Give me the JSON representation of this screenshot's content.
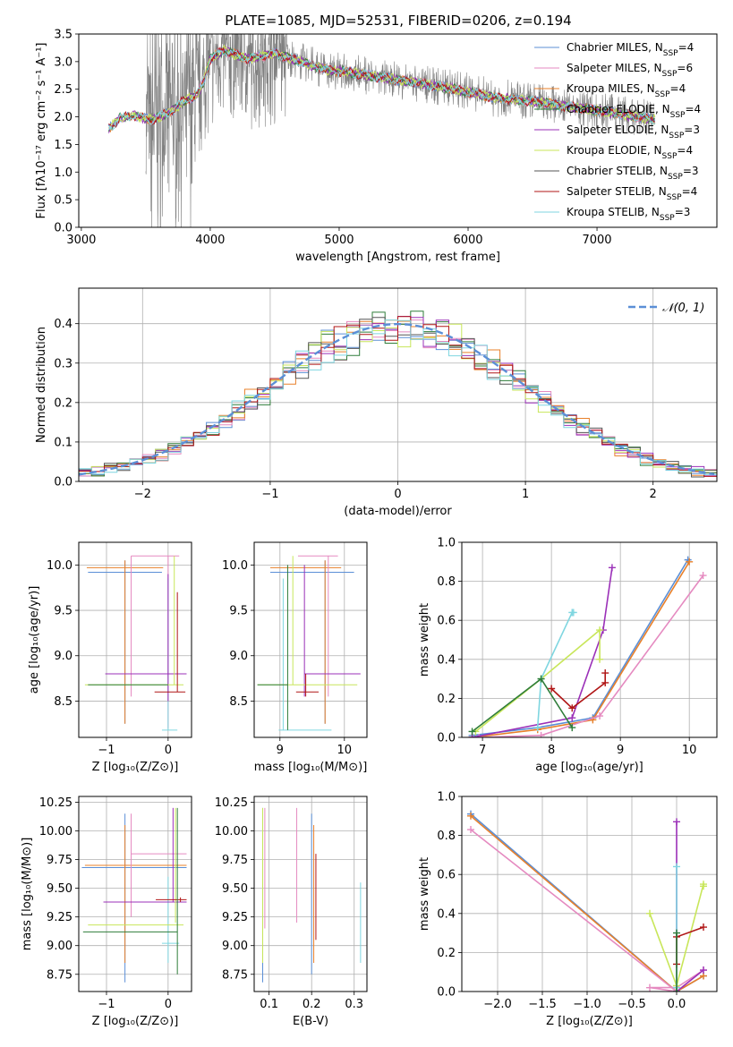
{
  "figure": {
    "title": "PLATE=1085, MJD=52531, FIBERID=0206, z=0.194"
  },
  "legend_entries": [
    {
      "key": "chabrier_miles",
      "label": "Chabrier MILES, N",
      "sub": "SSP",
      "suffix": "=4",
      "color": "#5b8fd6"
    },
    {
      "key": "salpeter_miles",
      "label": "Salpeter MILES, N",
      "sub": "SSP",
      "suffix": "=6",
      "color": "#e58ac0"
    },
    {
      "key": "kroupa_miles",
      "label": "Kroupa MILES, N",
      "sub": "SSP",
      "suffix": "=4",
      "color": "#e8802a"
    },
    {
      "key": "chabrier_elodie",
      "label": "Chabrier ELODIE, N",
      "sub": "SSP",
      "suffix": "=4",
      "color": "#2f7d3a"
    },
    {
      "key": "salpeter_elodie",
      "label": "Salpeter ELODIE, N",
      "sub": "SSP",
      "suffix": "=3",
      "color": "#9b30b8"
    },
    {
      "key": "kroupa_elodie",
      "label": "Kroupa ELODIE, N",
      "sub": "SSP",
      "suffix": "=4",
      "color": "#c8e65a"
    },
    {
      "key": "chabrier_stelib",
      "label": "Chabrier STELIB, N",
      "sub": "SSP",
      "suffix": "=3",
      "color": "#555555"
    },
    {
      "key": "salpeter_stelib",
      "label": "Salpeter STELIB, N",
      "sub": "SSP",
      "suffix": "=4",
      "color": "#b01616"
    },
    {
      "key": "kroupa_stelib",
      "label": "Kroupa STELIB, N",
      "sub": "SSP",
      "suffix": "=3",
      "color": "#7fd6e0"
    }
  ],
  "chart_data": [
    {
      "id": "spectrum",
      "type": "line",
      "xlabel": "wavelength [Angstrom, rest frame]",
      "ylabel_html": "Flux [fλ10⁻¹⁷ erg cm⁻² s⁻¹ A⁻¹]",
      "xlim": [
        2980,
        7930
      ],
      "ylim": [
        0,
        3.5
      ],
      "xticks": [
        3000,
        4000,
        5000,
        6000,
        7000
      ],
      "yticks": [
        0.0,
        0.5,
        1.0,
        1.5,
        2.0,
        2.5,
        3.0,
        3.5
      ],
      "ytick_labels": [
        "0.0",
        "0.5",
        "1.0",
        "1.5",
        "2.0",
        "2.5",
        "3.0",
        "3.5"
      ],
      "data_color": "#808080",
      "data_range": [
        3500,
        7450
      ],
      "model_range": [
        3210,
        7450
      ],
      "continuum": [
        [
          3210,
          1.78
        ],
        [
          3300,
          1.98
        ],
        [
          3400,
          2.02
        ],
        [
          3550,
          1.95
        ],
        [
          3700,
          2.1
        ],
        [
          3800,
          2.3
        ],
        [
          3900,
          2.4
        ],
        [
          3950,
          2.65
        ],
        [
          4000,
          3.05
        ],
        [
          4100,
          3.2
        ],
        [
          4300,
          3.05
        ],
        [
          4500,
          3.15
        ],
        [
          4700,
          3.0
        ],
        [
          4900,
          2.85
        ],
        [
          5100,
          2.8
        ],
        [
          5300,
          2.72
        ],
        [
          5600,
          2.62
        ],
        [
          5900,
          2.5
        ],
        [
          6200,
          2.35
        ],
        [
          6500,
          2.28
        ],
        [
          6800,
          2.18
        ],
        [
          7100,
          2.08
        ],
        [
          7450,
          1.95
        ]
      ],
      "legend_position": "top-right"
    },
    {
      "id": "residual_hist",
      "type": "step",
      "xlabel": "(data-model)/error",
      "ylabel": "Normed distribution",
      "xlim": [
        -2.5,
        2.5
      ],
      "ylim": [
        0,
        0.49
      ],
      "xticks": [
        -2,
        -1,
        0,
        1,
        2
      ],
      "xtick_labels": [
        "−2",
        "−1",
        "0",
        "1",
        "2"
      ],
      "yticks": [
        0.0,
        0.1,
        0.2,
        0.3,
        0.4
      ],
      "ytick_labels": [
        "0.0",
        "0.1",
        "0.2",
        "0.3",
        "0.4"
      ],
      "bin_width": 0.1,
      "gaussian_label": "𝒩(0, 1)",
      "gaussian_color": "#5b8fd6",
      "legend_position": "top-right",
      "grid": true
    },
    {
      "id": "age_vs_z",
      "type": "scatter-errorbar",
      "xlabel": "Z [log₁₀(Z/Z⊙)]",
      "ylabel": "age  [log₁₀(age/yr)]",
      "xlim": [
        -1.45,
        0.38
      ],
      "ylim": [
        8.1,
        10.25
      ],
      "xticks": [
        -1,
        0
      ],
      "xtick_labels": [
        "−1",
        "0"
      ],
      "yticks": [
        8.5,
        9.0,
        9.5,
        10.0
      ],
      "ytick_labels": [
        "8.5",
        "9.0",
        "9.5",
        "10.0"
      ],
      "grid": true,
      "points": [
        {
          "x": -0.7,
          "y": 9.92,
          "xerr": 0.6,
          "yerr": 0.0,
          "yspan": [
            8.25,
            10.05
          ],
          "c": "#5b8fd6"
        },
        {
          "x": -0.7,
          "y": 9.97,
          "xerr": 0.62,
          "yerr": 0.0,
          "yspan": [
            8.25,
            10.05
          ],
          "c": "#e8802a"
        },
        {
          "x": -0.6,
          "y": 10.1,
          "xerr": 0.0,
          "yerr": 0.0,
          "yspan": [
            8.55,
            10.1
          ],
          "c": "#e58ac0"
        },
        {
          "x": 0.0,
          "y": 10.1,
          "xerr": 0.0,
          "yerr": 0.0,
          "yspan": [
            8.2,
            10.1
          ],
          "c": "#e58ac0",
          "hspan": [
            -0.6,
            0.18
          ]
        },
        {
          "x": 0.0,
          "y": 8.18,
          "xerr": 0.0,
          "yerr": 0.0,
          "yspan": [
            8.18,
            9.85
          ],
          "c": "#7fd6e0",
          "hspan": [
            -0.1,
            0.15
          ]
        },
        {
          "x": 0.0,
          "y": 8.8,
          "xerr": 0.0,
          "yerr": 0.0,
          "yspan": [
            8.5,
            9.9
          ],
          "c": "#9b30b8",
          "hspan": [
            -1.02,
            0.3
          ]
        },
        {
          "x": 0.1,
          "y": 8.68,
          "xerr": 0.0,
          "yerr": 0.0,
          "yspan": [
            8.68,
            10.1
          ],
          "c": "#c8e65a",
          "hspan": [
            -1.35,
            0.25
          ]
        },
        {
          "x": 0.15,
          "y": 8.6,
          "xerr": 0.0,
          "yerr": 0.0,
          "yspan": [
            8.6,
            9.7
          ],
          "c": "#b01616",
          "hspan": [
            -0.22,
            0.28
          ]
        },
        {
          "x": 0.0,
          "y": 8.68,
          "xerr": 0.0,
          "yerr": 0.0,
          "yspan": [
            8.68,
            8.68
          ],
          "c": "#2f7d3a",
          "hspan": [
            -1.3,
            0.0
          ]
        }
      ]
    },
    {
      "id": "age_vs_mass",
      "type": "scatter-errorbar",
      "xlabel": "mass [log₁₀(M/M⊙)]",
      "ylabel": "",
      "xlim": [
        8.6,
        10.35
      ],
      "ylim": [
        8.1,
        10.25
      ],
      "xticks": [
        9,
        10
      ],
      "xtick_labels": [
        "9",
        "10"
      ],
      "yticks": [
        8.5,
        9.0,
        9.5,
        10.0
      ],
      "ytick_labels": [
        "8.5",
        "9.0",
        "9.5",
        "10.0"
      ],
      "grid": true,
      "points": [
        {
          "x": 9.7,
          "y": 9.92,
          "yspan": [
            8.25,
            10.05
          ],
          "hspan": [
            8.85,
            10.15
          ],
          "c": "#5b8fd6"
        },
        {
          "x": 9.7,
          "y": 9.97,
          "yspan": [
            8.25,
            10.05
          ],
          "hspan": [
            8.85,
            9.95
          ],
          "c": "#e8802a"
        },
        {
          "x": 9.75,
          "y": 10.1,
          "yspan": [
            8.55,
            10.1
          ],
          "hspan": [
            9.28,
            9.9
          ],
          "c": "#e58ac0"
        },
        {
          "x": 9.05,
          "y": 8.18,
          "yspan": [
            8.18,
            9.85
          ],
          "hspan": [
            8.98,
            9.8
          ],
          "c": "#7fd6e0"
        },
        {
          "x": 9.38,
          "y": 8.8,
          "yspan": [
            8.55,
            10.0
          ],
          "hspan": [
            9.38,
            10.25
          ],
          "c": "#9b30b8"
        },
        {
          "x": 9.2,
          "y": 8.68,
          "yspan": [
            8.68,
            10.1
          ],
          "hspan": [
            8.65,
            10.2
          ],
          "c": "#c8e65a"
        },
        {
          "x": 9.4,
          "y": 8.6,
          "yspan": [
            8.55,
            8.8
          ],
          "hspan": [
            9.25,
            9.6
          ],
          "c": "#b01616"
        },
        {
          "x": 9.12,
          "y": 8.68,
          "yspan": [
            8.18,
            10.0
          ],
          "hspan": [
            8.65,
            9.12
          ],
          "c": "#2f7d3a"
        }
      ]
    },
    {
      "id": "weight_vs_age",
      "type": "line",
      "xlabel": "age  [log₁₀(age/yr)]",
      "ylabel": "mass weight",
      "xlim": [
        6.7,
        10.4
      ],
      "ylim": [
        0,
        1.0
      ],
      "xticks": [
        7,
        8,
        9,
        10
      ],
      "xtick_labels": [
        "7",
        "8",
        "9",
        "10"
      ],
      "yticks": [
        0.0,
        0.2,
        0.4,
        0.6,
        0.8,
        1.0
      ],
      "ytick_labels": [
        "0.0",
        "0.2",
        "0.4",
        "0.6",
        "0.8",
        "1.0"
      ],
      "grid": true,
      "series": [
        {
          "c": "#5b8fd6",
          "x": [
            6.85,
            7.8,
            8.6,
            9.98
          ],
          "y": [
            0.01,
            0.05,
            0.1,
            0.91
          ]
        },
        {
          "c": "#e8802a",
          "x": [
            6.85,
            7.8,
            8.6,
            10.0
          ],
          "y": [
            0.0,
            0.04,
            0.09,
            0.9
          ]
        },
        {
          "c": "#e58ac0",
          "x": [
            6.95,
            7.85,
            8.7,
            10.2
          ],
          "y": [
            0.0,
            0.01,
            0.11,
            0.83
          ]
        },
        {
          "c": "#9b30b8",
          "x": [
            6.85,
            8.3,
            8.75,
            8.88
          ],
          "y": [
            0.0,
            0.1,
            0.55,
            0.87
          ]
        },
        {
          "c": "#c8e65a",
          "x": [
            6.9,
            7.85,
            8.7,
            8.7
          ],
          "y": [
            0.03,
            0.3,
            0.55,
            0.4
          ]
        },
        {
          "c": "#7fd6e0",
          "x": [
            7.8,
            7.85,
            8.3,
            8.32
          ],
          "y": [
            0.05,
            0.3,
            0.64,
            0.64
          ]
        },
        {
          "c": "#b01616",
          "x": [
            8.0,
            8.3,
            8.78,
            8.78
          ],
          "y": [
            0.25,
            0.15,
            0.28,
            0.33
          ]
        },
        {
          "c": "#2f7d3a",
          "x": [
            6.85,
            7.85,
            8.3
          ],
          "y": [
            0.03,
            0.3,
            0.05
          ]
        }
      ]
    },
    {
      "id": "mass_vs_z",
      "type": "scatter-errorbar",
      "xlabel": "Z [log₁₀(Z/Z⊙)]",
      "ylabel": "mass [log₁₀(M/M⊙)]",
      "xlim": [
        -1.45,
        0.38
      ],
      "ylim": [
        8.6,
        10.3
      ],
      "xticks": [
        -1,
        0
      ],
      "xtick_labels": [
        "−1",
        "0"
      ],
      "yticks": [
        8.75,
        9.0,
        9.25,
        9.5,
        9.75,
        10.0,
        10.25
      ],
      "ytick_labels": [
        "8.75",
        "9.00",
        "9.25",
        "9.50",
        "9.75",
        "10.00",
        "10.25"
      ],
      "grid": true,
      "points": [
        {
          "x": -0.7,
          "y": 9.68,
          "yspan": [
            8.68,
            10.15
          ],
          "hspan": [
            -1.4,
            0.3
          ],
          "c": "#5b8fd6"
        },
        {
          "x": -0.7,
          "y": 9.7,
          "yspan": [
            8.85,
            10.05
          ],
          "hspan": [
            -1.35,
            0.3
          ],
          "c": "#e8802a"
        },
        {
          "x": -0.6,
          "y": 9.8,
          "yspan": [
            9.25,
            10.15
          ],
          "hspan": [
            -0.6,
            0.3
          ],
          "c": "#e58ac0"
        },
        {
          "x": 0.0,
          "y": 9.02,
          "yspan": [
            8.85,
            9.6
          ],
          "hspan": [
            -0.1,
            0.18
          ],
          "c": "#7fd6e0"
        },
        {
          "x": 0.08,
          "y": 9.38,
          "yspan": [
            9.38,
            10.2
          ],
          "hspan": [
            -1.05,
            0.3
          ],
          "c": "#9b30b8"
        },
        {
          "x": 0.12,
          "y": 9.18,
          "yspan": [
            9.2,
            10.2
          ],
          "hspan": [
            -1.3,
            0.25
          ],
          "c": "#c8e65a"
        },
        {
          "x": 0.2,
          "y": 9.4,
          "yspan": [
            9.38,
            9.42
          ],
          "hspan": [
            -0.2,
            0.3
          ],
          "c": "#b01616"
        },
        {
          "x": 0.15,
          "y": 9.12,
          "yspan": [
            8.75,
            10.2
          ],
          "hspan": [
            -1.38,
            0.15
          ],
          "c": "#2f7d3a"
        }
      ]
    },
    {
      "id": "mass_vs_ebv",
      "type": "scatter-errorbar",
      "xlabel": "E(B-V)",
      "ylabel": "",
      "xlim": [
        0.065,
        0.33
      ],
      "ylim": [
        8.6,
        10.3
      ],
      "xticks": [
        0.1,
        0.2,
        0.3
      ],
      "xtick_labels": [
        "0.1",
        "0.2",
        "0.3"
      ],
      "yticks": [
        8.75,
        9.0,
        9.25,
        9.5,
        9.75,
        10.0,
        10.25
      ],
      "ytick_labels": [
        "8.75",
        "9.00",
        "9.25",
        "9.50",
        "9.75",
        "10.00",
        "10.25"
      ],
      "grid": true,
      "points": [
        {
          "x": 0.085,
          "y": 9.6,
          "yspan": [
            8.68,
            10.2
          ],
          "c": "#5b8fd6"
        },
        {
          "x": 0.09,
          "y": 9.6,
          "yspan": [
            9.15,
            10.2
          ],
          "c": "#e58ac0"
        },
        {
          "x": 0.085,
          "y": 9.5,
          "yspan": [
            8.85,
            10.2
          ],
          "c": "#c8e65a"
        },
        {
          "x": 0.165,
          "y": 9.7,
          "yspan": [
            9.2,
            10.2
          ],
          "c": "#e58ac0"
        },
        {
          "x": 0.2,
          "y": 9.5,
          "yspan": [
            8.75,
            10.15
          ],
          "c": "#5b8fd6"
        },
        {
          "x": 0.205,
          "y": 9.4,
          "yspan": [
            8.85,
            10.05
          ],
          "c": "#e8802a"
        },
        {
          "x": 0.21,
          "y": 9.4,
          "yspan": [
            9.05,
            9.8
          ],
          "c": "#b01616"
        },
        {
          "x": 0.315,
          "y": 9.2,
          "yspan": [
            8.85,
            9.55
          ],
          "c": "#7fd6e0"
        }
      ]
    },
    {
      "id": "weight_vs_z",
      "type": "line",
      "xlabel": "Z [log₁₀(Z/Z⊙)]",
      "ylabel": "mass weight",
      "xlim": [
        -2.4,
        0.45
      ],
      "ylim": [
        0,
        1.0
      ],
      "xticks": [
        -2.0,
        -1.5,
        -1.0,
        -0.5,
        0.0
      ],
      "xtick_labels": [
        "−2.0",
        "−1.5",
        "−1.0",
        "−0.5",
        "0.0"
      ],
      "yticks": [
        0.0,
        0.2,
        0.4,
        0.6,
        0.8,
        1.0
      ],
      "ytick_labels": [
        "0.0",
        "0.2",
        "0.4",
        "0.6",
        "0.8",
        "1.0"
      ],
      "grid": true,
      "series": [
        {
          "c": "#5b8fd6",
          "x": [
            -2.3,
            0.0,
            0.3
          ],
          "y": [
            0.91,
            0.0,
            0.08
          ]
        },
        {
          "c": "#e8802a",
          "x": [
            -2.3,
            0.0,
            0.3
          ],
          "y": [
            0.9,
            0.0,
            0.08
          ]
        },
        {
          "c": "#e58ac0",
          "x": [
            -2.3,
            0.0,
            -0.3,
            0.0,
            0.3
          ],
          "y": [
            0.83,
            0.0,
            0.02,
            0.02,
            0.11
          ]
        },
        {
          "c": "#9b30b8",
          "x": [
            0.0,
            0.0,
            0.3
          ],
          "y": [
            0.87,
            0.0,
            0.11
          ]
        },
        {
          "c": "#c8e65a",
          "x": [
            -0.3,
            0.0,
            0.3,
            0.3
          ],
          "y": [
            0.4,
            0.03,
            0.55,
            0.54
          ]
        },
        {
          "c": "#7fd6e0",
          "x": [
            0.0,
            0.0
          ],
          "y": [
            0.64,
            0.02
          ]
        },
        {
          "c": "#b01616",
          "x": [
            0.0,
            0.0,
            0.3
          ],
          "y": [
            0.14,
            0.28,
            0.33
          ]
        },
        {
          "c": "#2f7d3a",
          "x": [
            0.0,
            0.0
          ],
          "y": [
            0.3,
            0.0
          ]
        }
      ]
    }
  ]
}
